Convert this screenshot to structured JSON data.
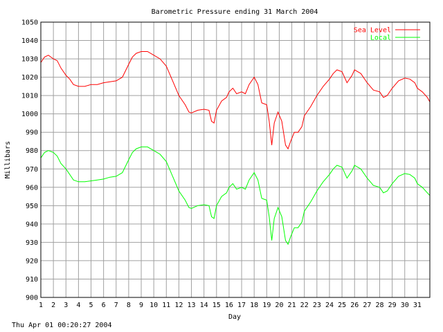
{
  "footer": {
    "timestamp": "Thu Apr 01 00:20:27 2004"
  },
  "chart_data": {
    "type": "line",
    "title": "Barometric Pressure ending 31 March 2004",
    "xlabel": "Day",
    "ylabel": "Millibars",
    "xlim": [
      1,
      32
    ],
    "ylim": [
      900,
      1050
    ],
    "x_ticks": [
      "1",
      "2",
      "3",
      "4",
      "5",
      "6",
      "7",
      "8",
      "9",
      "10",
      "11",
      "12",
      "13",
      "14",
      "15",
      "16",
      "17",
      "18",
      "19",
      "20",
      "21",
      "22",
      "23",
      "24",
      "25",
      "26",
      "27",
      "28",
      "29",
      "30",
      "31"
    ],
    "y_ticks": [
      900,
      910,
      920,
      930,
      940,
      950,
      960,
      970,
      980,
      990,
      1000,
      1010,
      1020,
      1030,
      1040,
      1050
    ],
    "grid": true,
    "legend_position": "top-right",
    "series": [
      {
        "name": "Sea Level",
        "color": "#ff0000",
        "points": [
          [
            1.0,
            1028
          ],
          [
            1.3,
            1031
          ],
          [
            1.6,
            1032
          ],
          [
            2.0,
            1030
          ],
          [
            2.3,
            1029
          ],
          [
            2.6,
            1025
          ],
          [
            3.0,
            1021
          ],
          [
            3.3,
            1019
          ],
          [
            3.6,
            1016
          ],
          [
            4.0,
            1015
          ],
          [
            4.5,
            1015
          ],
          [
            5.0,
            1016
          ],
          [
            5.5,
            1016
          ],
          [
            6.0,
            1017
          ],
          [
            6.5,
            1017.5
          ],
          [
            7.0,
            1018
          ],
          [
            7.5,
            1020
          ],
          [
            8.0,
            1027
          ],
          [
            8.3,
            1031
          ],
          [
            8.6,
            1033
          ],
          [
            9.0,
            1034
          ],
          [
            9.5,
            1034
          ],
          [
            10.0,
            1032
          ],
          [
            10.5,
            1030
          ],
          [
            11.0,
            1026
          ],
          [
            11.5,
            1018
          ],
          [
            12.0,
            1010
          ],
          [
            12.5,
            1005
          ],
          [
            12.8,
            1001
          ],
          [
            13.0,
            1000.5
          ],
          [
            13.5,
            1002
          ],
          [
            14.0,
            1002.5
          ],
          [
            14.4,
            1002
          ],
          [
            14.6,
            996
          ],
          [
            14.8,
            995
          ],
          [
            15.0,
            1002
          ],
          [
            15.4,
            1007
          ],
          [
            15.8,
            1009
          ],
          [
            16.0,
            1012
          ],
          [
            16.3,
            1014
          ],
          [
            16.6,
            1011
          ],
          [
            17.0,
            1012
          ],
          [
            17.3,
            1011
          ],
          [
            17.6,
            1016
          ],
          [
            18.0,
            1020
          ],
          [
            18.3,
            1016
          ],
          [
            18.6,
            1006
          ],
          [
            19.0,
            1005
          ],
          [
            19.2,
            996
          ],
          [
            19.4,
            983
          ],
          [
            19.6,
            995
          ],
          [
            19.9,
            1001
          ],
          [
            20.2,
            996
          ],
          [
            20.5,
            983
          ],
          [
            20.7,
            981
          ],
          [
            20.9,
            985
          ],
          [
            21.2,
            990
          ],
          [
            21.5,
            990
          ],
          [
            21.8,
            993
          ],
          [
            22.0,
            999
          ],
          [
            22.5,
            1004
          ],
          [
            23.0,
            1010
          ],
          [
            23.5,
            1015
          ],
          [
            24.0,
            1019
          ],
          [
            24.3,
            1022
          ],
          [
            24.6,
            1024
          ],
          [
            25.0,
            1023
          ],
          [
            25.4,
            1017
          ],
          [
            25.8,
            1021
          ],
          [
            26.0,
            1024
          ],
          [
            26.5,
            1022
          ],
          [
            27.0,
            1017
          ],
          [
            27.5,
            1013
          ],
          [
            28.0,
            1012
          ],
          [
            28.3,
            1009
          ],
          [
            28.6,
            1010
          ],
          [
            29.0,
            1014
          ],
          [
            29.5,
            1018
          ],
          [
            30.0,
            1019.5
          ],
          [
            30.4,
            1019
          ],
          [
            30.8,
            1017
          ],
          [
            31.0,
            1014
          ],
          [
            31.4,
            1012
          ],
          [
            31.8,
            1009
          ],
          [
            32.0,
            1006.5
          ]
        ]
      },
      {
        "name": "Local",
        "color": "#00ff00",
        "points": [
          [
            1.0,
            976
          ],
          [
            1.3,
            979
          ],
          [
            1.6,
            980
          ],
          [
            2.0,
            979
          ],
          [
            2.3,
            977
          ],
          [
            2.6,
            973
          ],
          [
            3.0,
            970
          ],
          [
            3.3,
            967
          ],
          [
            3.6,
            964
          ],
          [
            4.0,
            963
          ],
          [
            4.5,
            963
          ],
          [
            5.0,
            963.5
          ],
          [
            5.5,
            964
          ],
          [
            6.0,
            964.5
          ],
          [
            6.5,
            965.5
          ],
          [
            7.0,
            966
          ],
          [
            7.5,
            968
          ],
          [
            8.0,
            975
          ],
          [
            8.3,
            979
          ],
          [
            8.6,
            981
          ],
          [
            9.0,
            982
          ],
          [
            9.5,
            982
          ],
          [
            10.0,
            980
          ],
          [
            10.5,
            978
          ],
          [
            11.0,
            974
          ],
          [
            11.5,
            966
          ],
          [
            12.0,
            958
          ],
          [
            12.5,
            953
          ],
          [
            12.8,
            949
          ],
          [
            13.0,
            948.5
          ],
          [
            13.5,
            950
          ],
          [
            14.0,
            950.5
          ],
          [
            14.4,
            950
          ],
          [
            14.6,
            944
          ],
          [
            14.8,
            943
          ],
          [
            15.0,
            950
          ],
          [
            15.4,
            955
          ],
          [
            15.8,
            957
          ],
          [
            16.0,
            960
          ],
          [
            16.3,
            962
          ],
          [
            16.6,
            959
          ],
          [
            17.0,
            960
          ],
          [
            17.3,
            959
          ],
          [
            17.6,
            964
          ],
          [
            18.0,
            968
          ],
          [
            18.3,
            964
          ],
          [
            18.6,
            954
          ],
          [
            19.0,
            953
          ],
          [
            19.2,
            944
          ],
          [
            19.4,
            931
          ],
          [
            19.6,
            943
          ],
          [
            19.9,
            949
          ],
          [
            20.2,
            944
          ],
          [
            20.5,
            931
          ],
          [
            20.7,
            929
          ],
          [
            20.9,
            933
          ],
          [
            21.2,
            938
          ],
          [
            21.5,
            938
          ],
          [
            21.8,
            941
          ],
          [
            22.0,
            947
          ],
          [
            22.5,
            952
          ],
          [
            23.0,
            958
          ],
          [
            23.5,
            963
          ],
          [
            24.0,
            967
          ],
          [
            24.3,
            970
          ],
          [
            24.6,
            972
          ],
          [
            25.0,
            971
          ],
          [
            25.4,
            965
          ],
          [
            25.8,
            969
          ],
          [
            26.0,
            972
          ],
          [
            26.5,
            970
          ],
          [
            27.0,
            965
          ],
          [
            27.5,
            961
          ],
          [
            28.0,
            960
          ],
          [
            28.3,
            957
          ],
          [
            28.6,
            958
          ],
          [
            29.0,
            962
          ],
          [
            29.5,
            966
          ],
          [
            30.0,
            967.5
          ],
          [
            30.4,
            967
          ],
          [
            30.8,
            965
          ],
          [
            31.0,
            962
          ],
          [
            31.4,
            960
          ],
          [
            31.8,
            957
          ],
          [
            32.0,
            955.5
          ]
        ]
      }
    ]
  }
}
